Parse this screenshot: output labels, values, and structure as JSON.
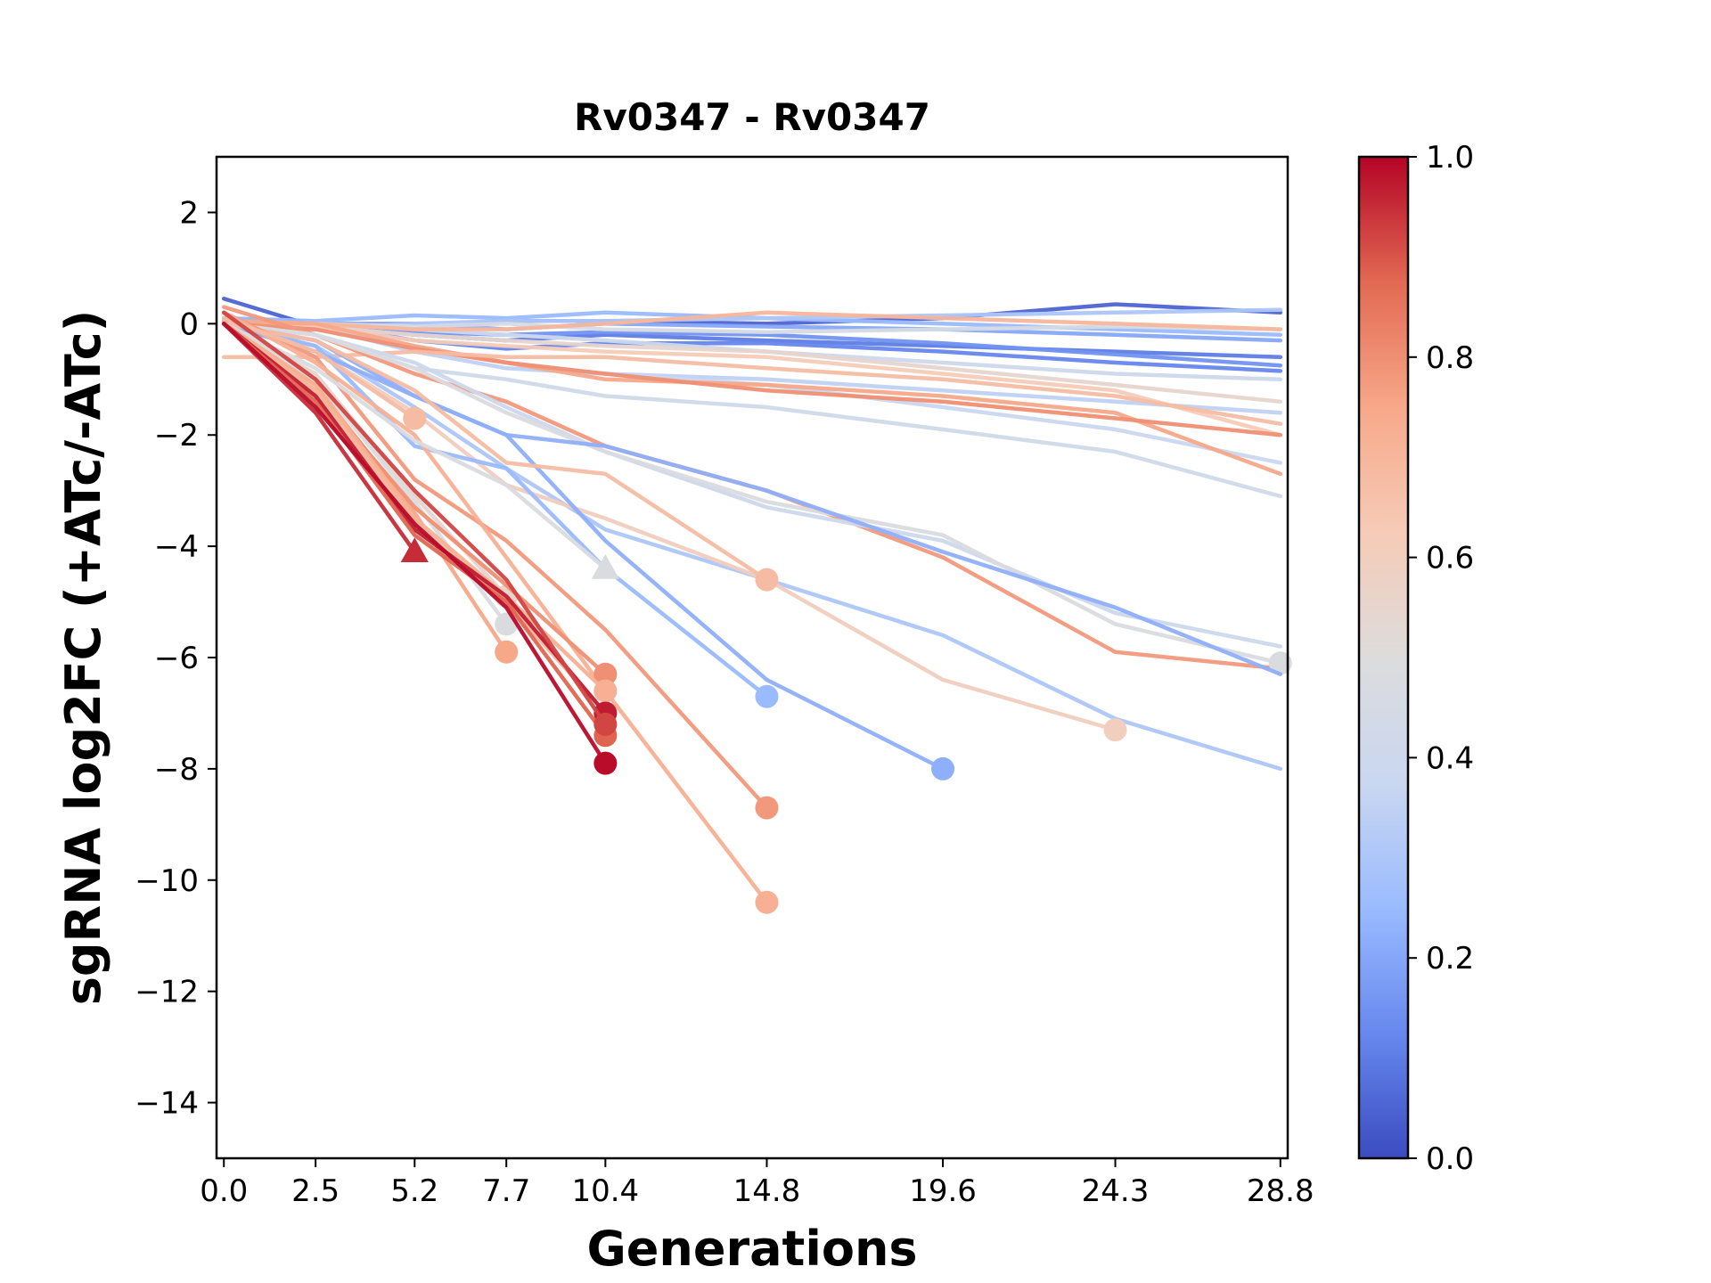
{
  "chart_data": {
    "type": "line",
    "title": "Rv0347 - Rv0347",
    "xlabel": "Generations",
    "ylabel": "sgRNA log2FC (+ATc/-ATc)",
    "x_ticks": [
      0.0,
      2.5,
      5.2,
      7.7,
      10.4,
      14.8,
      19.6,
      24.3,
      28.8
    ],
    "x_tick_labels": [
      "0.0",
      "2.5",
      "5.2",
      "7.7",
      "10.4",
      "14.8",
      "19.6",
      "24.3",
      "28.8"
    ],
    "y_ticks": [
      2,
      0,
      -2,
      -4,
      -6,
      -8,
      -10,
      -12,
      -14
    ],
    "y_tick_labels": [
      "2",
      "0",
      "−2",
      "−4",
      "−6",
      "−8",
      "−10",
      "−12",
      "−14"
    ],
    "xlim": [
      -0.2,
      29.0
    ],
    "ylim": [
      -15,
      3
    ],
    "grid": false,
    "colorbar": {
      "range": [
        0.0,
        1.0
      ],
      "ticks": [
        0.0,
        0.2,
        0.4,
        0.6,
        0.8,
        1.0
      ],
      "tick_labels": [
        "0.0",
        "0.2",
        "0.4",
        "0.6",
        "0.8",
        "1.0"
      ],
      "colormap": "coolwarm",
      "stops": [
        "#3b4cc0",
        "#6788ee",
        "#9abbff",
        "#c9d7f0",
        "#dddcdc",
        "#f6cbb7",
        "#f7a889",
        "#e26952",
        "#b40426"
      ]
    },
    "x_generations": [
      0.0,
      2.5,
      5.2,
      7.7,
      10.4,
      14.8,
      19.6,
      24.3,
      28.8
    ],
    "series": [
      {
        "c": 0.05,
        "y": [
          0.45,
          -0.05,
          -0.1,
          0.05,
          0.05,
          0.0,
          0.1,
          0.35,
          0.2
        ]
      },
      {
        "c": 0.1,
        "y": [
          0.1,
          0.0,
          -0.2,
          -0.3,
          -0.2,
          -0.3,
          -0.4,
          -0.5,
          -0.6
        ]
      },
      {
        "c": 0.15,
        "y": [
          0.0,
          -0.1,
          -0.15,
          -0.2,
          -0.15,
          -0.2,
          -0.35,
          -0.55,
          -0.75
        ]
      },
      {
        "c": 0.12,
        "y": [
          0.0,
          0.0,
          -0.3,
          -0.45,
          -0.35,
          -0.35,
          -0.5,
          -0.7,
          -0.85
        ]
      },
      {
        "c": 0.2,
        "y": [
          0.0,
          0.0,
          0.0,
          -0.1,
          0.0,
          -0.05,
          -0.1,
          -0.2,
          -0.3
        ]
      },
      {
        "c": 0.25,
        "y": [
          0.1,
          0.05,
          0.15,
          0.1,
          0.2,
          0.1,
          0.0,
          -0.1,
          -0.2
        ]
      },
      {
        "c": 0.3,
        "y": [
          0.0,
          -0.1,
          0.0,
          0.05,
          0.05,
          0.1,
          0.15,
          0.2,
          0.25
        ]
      },
      {
        "c": 0.35,
        "y": [
          0.0,
          -0.05,
          -0.5,
          -0.8,
          -0.9,
          -1.0,
          -1.2,
          -1.4,
          -1.6
        ]
      },
      {
        "c": 0.4,
        "y": [
          0.05,
          0.0,
          -0.1,
          -0.2,
          -0.3,
          -0.5,
          -0.7,
          -0.9,
          -1.0
        ]
      },
      {
        "c": 0.45,
        "y": [
          0.0,
          0.0,
          -0.05,
          0.0,
          -0.1,
          -0.15,
          -0.1,
          -0.05,
          -0.1
        ]
      },
      {
        "c": 0.42,
        "y": [
          0.0,
          -0.2,
          -0.8,
          -1.0,
          -1.3,
          -1.5,
          -1.9,
          -2.3,
          -3.1
        ]
      },
      {
        "c": 0.38,
        "y": [
          0.0,
          -0.1,
          -0.4,
          -0.7,
          -0.9,
          -1.1,
          -1.5,
          -1.9,
          -2.5
        ]
      },
      {
        "c": 0.55,
        "y": [
          0.0,
          -0.05,
          -0.2,
          -0.3,
          -0.4,
          -0.5,
          -0.8,
          -1.1,
          -1.4
        ]
      },
      {
        "c": 0.62,
        "y": [
          0.0,
          -0.05,
          -0.3,
          -0.4,
          -0.5,
          -0.6,
          -0.9,
          -1.2,
          -2.0
        ]
      },
      {
        "c": 0.7,
        "y": [
          0.0,
          0.0,
          -0.1,
          -0.1,
          0.0,
          0.2,
          0.1,
          0.0,
          -0.1
        ]
      },
      {
        "c": 0.75,
        "y": [
          0.05,
          0.0,
          -0.4,
          -0.7,
          -1.0,
          -1.1,
          -1.3,
          -1.6,
          -2.7
        ]
      },
      {
        "c": 0.8,
        "y": [
          0.0,
          -0.1,
          -0.45,
          -0.7,
          -0.9,
          -1.2,
          -1.4,
          -1.7,
          -2.0
        ]
      },
      {
        "c": 0.68,
        "y": [
          -0.6,
          -0.6,
          -0.5,
          -0.6,
          -0.6,
          -0.8,
          -1.0,
          -1.3,
          -1.8
        ]
      },
      {
        "c": 0.78,
        "y": [
          0.3,
          -0.2,
          -0.9,
          -1.4,
          -2.2,
          -3.0,
          -4.2,
          -5.9,
          -6.2
        ]
      },
      {
        "c": 0.4,
        "y": [
          0.0,
          -0.2,
          -0.7,
          -1.5,
          -2.3,
          -3.3,
          -3.9,
          -5.2,
          -5.8
        ]
      },
      {
        "c": 0.48,
        "y": [
          0.0,
          -0.2,
          -0.8,
          -1.6,
          -2.3,
          -3.2,
          -3.8,
          -5.4,
          -6.1
        ],
        "end": 28.8,
        "m": "o"
      },
      {
        "c": 0.22,
        "y": [
          0.0,
          -0.3,
          -1.3,
          -2.0,
          -2.2,
          -3.0,
          -4.1,
          -5.1,
          -6.3
        ]
      },
      {
        "c": 0.3,
        "y": [
          0.0,
          -0.4,
          -1.5,
          -2.6,
          -3.7,
          -4.6,
          -5.6,
          -7.1,
          -8.0
        ]
      },
      {
        "c": 0.6,
        "y": [
          0.0,
          -0.5,
          -1.6,
          -2.9,
          -3.5,
          -4.6,
          -6.4,
          -7.3
        ],
        "end": 24.3,
        "m": "o"
      },
      {
        "c": 0.22,
        "y": [
          0.0,
          -0.5,
          -1.3,
          -2.0,
          -3.9,
          -6.4,
          -8.0
        ],
        "end": 19.6,
        "m": "o"
      },
      {
        "c": 0.25,
        "y": [
          0.0,
          -0.4,
          -2.2,
          -2.6,
          -4.4,
          -6.7
        ],
        "end": 14.8,
        "m": "o"
      },
      {
        "c": 0.68,
        "y": [
          0.0,
          -0.3,
          -1.2,
          -2.5,
          -2.7,
          -4.6
        ],
        "end": 14.8,
        "m": "o"
      },
      {
        "c": 0.78,
        "y": [
          0.2,
          -0.6,
          -2.8,
          -3.9,
          -5.5,
          -8.7
        ],
        "end": 14.8,
        "m": "o"
      },
      {
        "c": 0.72,
        "y": [
          0.2,
          -0.7,
          -2.0,
          -4.2,
          -6.6,
          -10.4
        ],
        "end": 14.8,
        "m": "o"
      },
      {
        "c": 0.68,
        "y": [
          0.1,
          -0.5,
          -1.7
        ],
        "end": 5.2,
        "m": "o"
      },
      {
        "c": 0.48,
        "y": [
          0.0,
          -0.8,
          -2.1,
          -2.9,
          -4.4
        ],
        "end": 10.4,
        "m": "^"
      },
      {
        "c": 0.95,
        "y": [
          0.0,
          -1.6,
          -4.1
        ],
        "end": 5.2,
        "m": "^"
      },
      {
        "c": 0.55,
        "y": [
          0.0,
          -0.9,
          -3.1,
          -4.9
        ],
        "end": 7.7,
        "m": "o"
      },
      {
        "c": 0.48,
        "y": [
          0.0,
          -1.0,
          -3.2,
          -5.4
        ],
        "end": 7.7,
        "m": "o"
      },
      {
        "c": 0.75,
        "y": [
          0.0,
          -1.1,
          -3.4,
          -5.9
        ],
        "end": 7.7,
        "m": "o"
      },
      {
        "c": 0.8,
        "y": [
          0.0,
          -1.2,
          -3.3,
          -4.7,
          -6.3
        ],
        "end": 10.4,
        "m": "o"
      },
      {
        "c": 0.72,
        "y": [
          0.0,
          -1.1,
          -3.5,
          -4.9,
          -6.6
        ],
        "end": 10.4,
        "m": "o"
      },
      {
        "c": 0.7,
        "y": [
          0.0,
          -1.2,
          -3.6,
          -5.0,
          -7.0
        ],
        "end": 10.4,
        "m": "o"
      },
      {
        "c": 0.97,
        "y": [
          0.0,
          -1.3,
          -3.7,
          -4.9,
          -7.0
        ],
        "end": 10.4,
        "m": "o"
      },
      {
        "c": 0.88,
        "y": [
          0.0,
          -1.4,
          -3.8,
          -5.0,
          -7.4
        ],
        "end": 10.4,
        "m": "o"
      },
      {
        "c": 0.99,
        "y": [
          0.0,
          -1.5,
          -3.6,
          -5.1,
          -7.9
        ],
        "end": 10.4,
        "m": "o"
      },
      {
        "c": 0.92,
        "y": [
          0.2,
          -1.0,
          -3.0,
          -4.6,
          -7.2
        ],
        "end": 10.4,
        "m": "o"
      }
    ]
  }
}
